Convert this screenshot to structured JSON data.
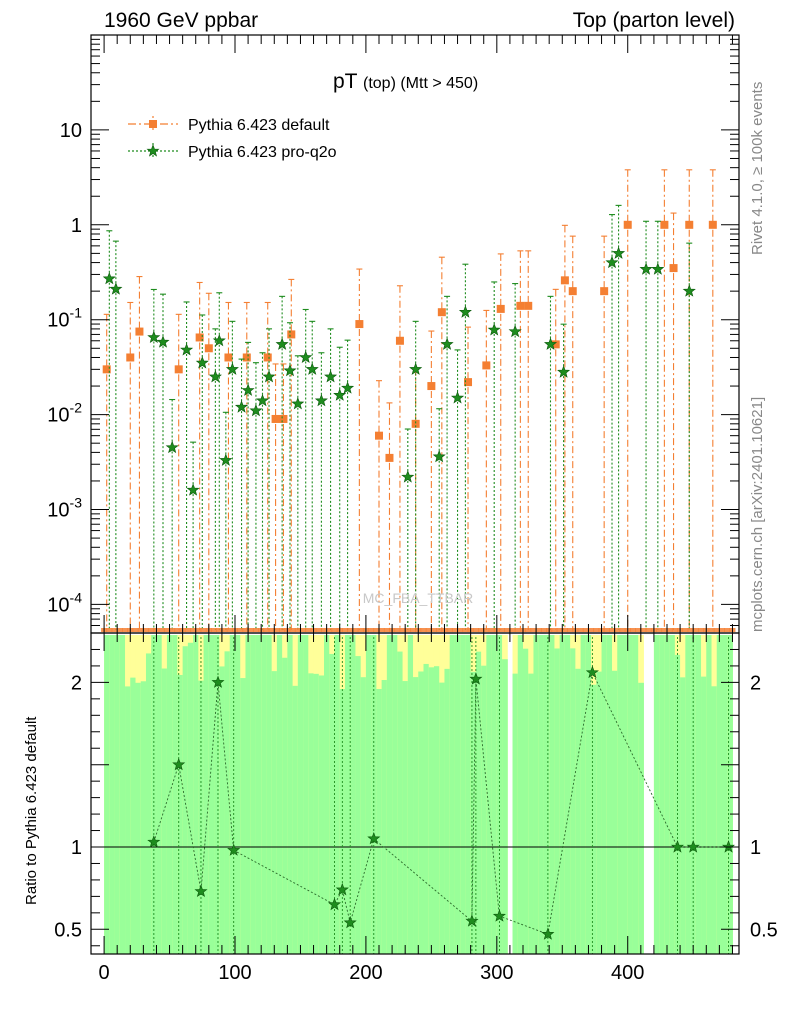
{
  "header": {
    "left_label": "1960 GeV ppbar",
    "right_label": "Top (parton level)"
  },
  "side_labels": {
    "rivet": "Rivet 4.1.0, ≥ 100k events",
    "mcplots": "mcplots.cern.ch [arXiv:2401.10621]"
  },
  "chart_data": {
    "type": "scatter",
    "title_main": "pT",
    "title_sub": "(top) (Mtt > 450)",
    "watermark": "MC_FBA_TTBAR",
    "xlim": [
      -10,
      485
    ],
    "x_ticks": [
      0,
      100,
      200,
      300,
      400
    ],
    "x_tick_labels": [
      "0",
      "100",
      "200",
      "300",
      "400"
    ],
    "ylim": [
      5e-05,
      100
    ],
    "yscale": "log",
    "y_tick_labels": [
      "10",
      "1",
      "10^-1",
      "10^-2",
      "10^-3",
      "10^-4"
    ],
    "ratio_ylabel": "Ratio to Pythia 6.423 default",
    "ratio_ylim": [
      0.35,
      2.3
    ],
    "ratio_ticks": [
      0.5,
      1,
      2
    ],
    "ratio_tick_labels": [
      "0.5",
      "1",
      "2"
    ],
    "legend": [
      {
        "name": "Pythia 6.423 default",
        "color": "#f47f32",
        "marker": "square",
        "style": "dash-dot"
      },
      {
        "name": "Pythia 6.423 pro-q2o",
        "color": "#1e8c1e",
        "marker": "star",
        "style": "dotted"
      }
    ],
    "band_colors": {
      "outer": "#ffff99",
      "inner": "#99ff99"
    },
    "series": [
      {
        "name": "Pythia 6.423 default",
        "color": "#f47f32",
        "x": [
          2,
          20,
          27,
          57,
          73,
          80,
          95,
          109,
          125,
          131,
          137,
          143,
          195,
          210,
          218,
          226,
          238,
          250,
          258,
          278,
          292,
          303,
          318,
          324,
          345,
          352,
          358,
          382,
          400,
          428,
          435,
          447,
          465
        ],
        "y": [
          0.03,
          0.04,
          0.075,
          0.03,
          0.065,
          0.05,
          0.04,
          0.04,
          0.04,
          0.009,
          0.009,
          0.07,
          0.09,
          0.006,
          0.0035,
          0.06,
          0.008,
          0.02,
          0.12,
          0.022,
          0.033,
          0.13,
          0.14,
          0.14,
          0.055,
          0.26,
          0.2,
          0.2,
          1.0,
          1.0,
          0.35,
          1.0,
          1.0
        ]
      },
      {
        "name": "Pythia 6.423 pro-q2o",
        "color": "#1e8c1e",
        "x": [
          4,
          9,
          38,
          45,
          52,
          63,
          68,
          75,
          85,
          88,
          93,
          98,
          105,
          110,
          116,
          121,
          126,
          136,
          142,
          148,
          154,
          159,
          166,
          173,
          180,
          186,
          232,
          238,
          256,
          262,
          270,
          276,
          298,
          314,
          341,
          351,
          388,
          393,
          414,
          423,
          447
        ],
        "y": [
          0.27,
          0.21,
          0.065,
          0.058,
          0.0045,
          0.048,
          0.0016,
          0.035,
          0.025,
          0.06,
          0.0033,
          0.03,
          0.012,
          0.018,
          0.011,
          0.014,
          0.025,
          0.055,
          0.029,
          0.013,
          0.04,
          0.03,
          0.014,
          0.025,
          0.016,
          0.019,
          0.0022,
          0.03,
          0.0036,
          0.055,
          0.015,
          0.12,
          0.078,
          0.075,
          0.055,
          0.028,
          0.4,
          0.5,
          0.34,
          0.34,
          0.2
        ]
      }
    ],
    "ratio_series": {
      "name": "Pythia 6.423 pro-q2o",
      "x": [
        38,
        57,
        74,
        87,
        99,
        176,
        182,
        188,
        206,
        281,
        284,
        302,
        339,
        373,
        438,
        450,
        477
      ],
      "y": [
        1.03,
        1.5,
        0.73,
        2.0,
        0.98,
        0.65,
        0.74,
        0.54,
        1.05,
        0.55,
        2.02,
        0.58,
        0.47,
        2.06,
        1.0,
        1.0,
        1.0
      ]
    }
  }
}
